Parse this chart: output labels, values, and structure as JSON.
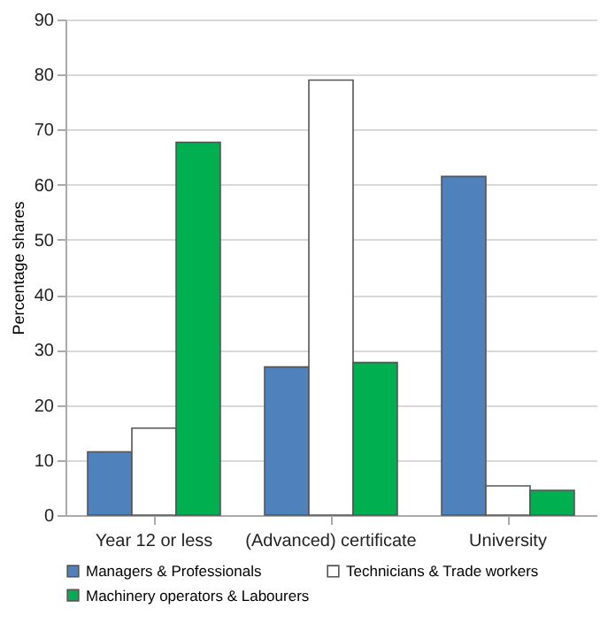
{
  "chart_data": {
    "type": "bar",
    "ylabel": "Percentage shares",
    "categories": [
      "Year 12 or less",
      "(Advanced) certificate",
      "University"
    ],
    "series": [
      {
        "name": "Managers & Professionals",
        "color": "#4f81bd",
        "values": [
          11.5,
          26.9,
          61.5
        ]
      },
      {
        "name": "Technicians & Trade workers",
        "color": "#ffffff",
        "values": [
          15.8,
          79,
          5.3
        ]
      },
      {
        "name": "Machinery operators & Labourers",
        "color": "#00b050",
        "values": [
          67.7,
          27.7,
          4.5
        ]
      }
    ],
    "ylim": [
      0,
      90
    ],
    "yticks": [
      0,
      10,
      20,
      30,
      40,
      50,
      60,
      70,
      80,
      90
    ],
    "grid": "y",
    "legend": "bottom"
  }
}
